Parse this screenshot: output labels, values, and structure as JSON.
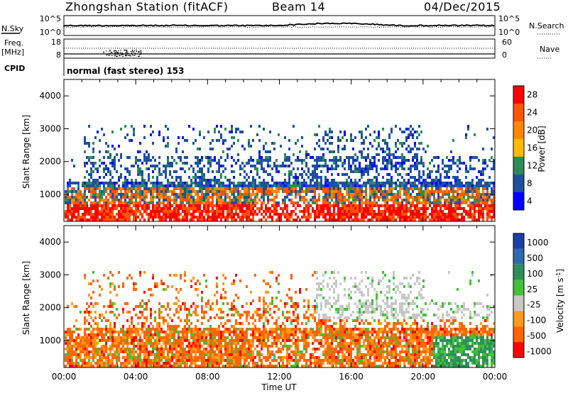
{
  "header": {
    "station": "Zhongshan Station (fitACF)",
    "beam": "Beam 14",
    "date": "04/Dec/2015"
  },
  "sky_panel": {
    "left_label": "N.Sky",
    "left_ticks": [
      "10^5",
      "10^0"
    ],
    "right_ticks": [
      "10^5",
      "10^0"
    ],
    "right_label": "N.Search"
  },
  "freq_panel": {
    "left_label_1": "Freq.",
    "left_label_2": "[MHz]",
    "left_ticks": [
      "18",
      "8"
    ],
    "right_ticks": [
      "60",
      "0"
    ],
    "right_label": "Nave"
  },
  "cpid": {
    "label": "CPID",
    "text": "normal (fast stereo) 153"
  },
  "chart_data": [
    {
      "type": "heatmap",
      "quantity": "Power",
      "ylabel": "Slant Range [km]",
      "ylim": [
        180,
        4500
      ],
      "y_ticks": [
        "1000",
        "2000",
        "3000",
        "4000"
      ],
      "y_tick_values": [
        1000,
        2000,
        3000,
        4000
      ],
      "xlim_hours": [
        0,
        24
      ],
      "colorbar": {
        "label": "Power [dB]",
        "ticks": [
          "28",
          "24",
          "20",
          "16",
          "12",
          "8",
          "4"
        ],
        "colors": [
          "#ff0000",
          "#ff5500",
          "#ff8800",
          "#ffbb00",
          "#2e8b57",
          "#1e4fa0",
          "#0000ff"
        ]
      }
    },
    {
      "type": "heatmap",
      "quantity": "Velocity",
      "ylabel": "Slant Range [km]",
      "ylim": [
        180,
        4500
      ],
      "y_ticks": [
        "1000",
        "2000",
        "3000",
        "4000"
      ],
      "y_tick_values": [
        1000,
        2000,
        3000,
        4000
      ],
      "xlim_hours": [
        0,
        24
      ],
      "colorbar": {
        "label": "Velocity [m s",
        "label_sup": "-1",
        "label_end": "]",
        "ticks": [
          "1000",
          "500",
          "100",
          "25",
          "-25",
          "-100",
          "-500",
          "-1000"
        ],
        "colors": [
          "#1a3fa8",
          "#2d6bb0",
          "#2f8f5a",
          "#44c03a",
          "#c8c8c8",
          "#ff9a1a",
          "#ff6600",
          "#ff0000"
        ]
      }
    }
  ],
  "x_axis": {
    "ticks": [
      "00:00",
      "04:00",
      "08:00",
      "12:00",
      "16:00",
      "20:00",
      "00:00"
    ],
    "tick_hours": [
      0,
      4,
      8,
      12,
      16,
      20,
      24
    ],
    "label": "Time UT"
  }
}
